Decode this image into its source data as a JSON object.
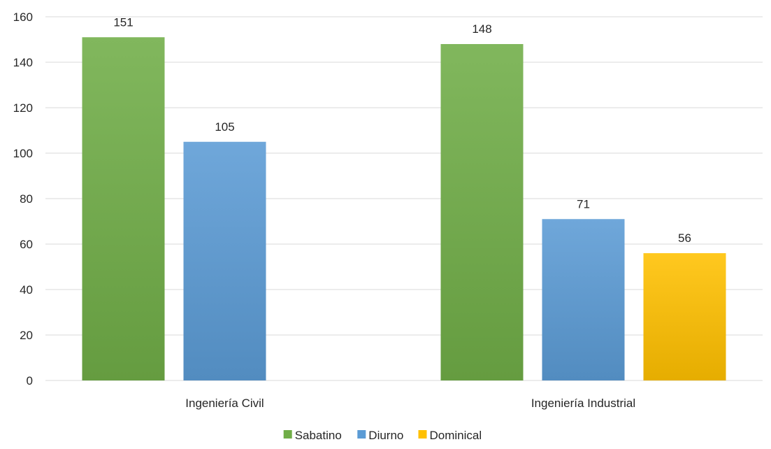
{
  "chart_data": {
    "type": "bar",
    "categories": [
      "Ingeniería Civil",
      "Ingeniería Industrial"
    ],
    "series": [
      {
        "name": "Sabatino",
        "values": [
          151,
          148
        ],
        "color": "#70ad47"
      },
      {
        "name": "Diurno",
        "values": [
          105,
          71
        ],
        "color": "#5b9bd5"
      },
      {
        "name": "Dominical",
        "values": [
          null,
          56
        ],
        "color": "#ffc000"
      }
    ],
    "y_ticks": [
      "0",
      "20",
      "40",
      "60",
      "80",
      "100",
      "120",
      "140",
      "160"
    ],
    "ylim": [
      0,
      160
    ],
    "grid": true,
    "legend_position": "bottom"
  }
}
